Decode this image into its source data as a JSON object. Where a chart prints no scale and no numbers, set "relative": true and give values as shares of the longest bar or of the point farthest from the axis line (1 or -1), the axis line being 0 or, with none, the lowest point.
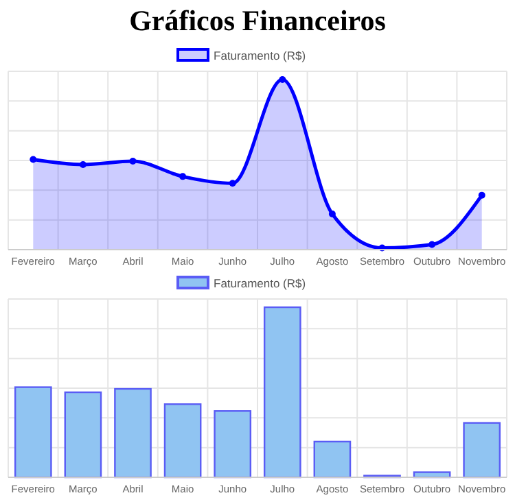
{
  "chart_data": [
    {
      "type": "area",
      "title": "Gráficos Financeiros",
      "categories": [
        "Fevereiro",
        "Março",
        "Abril",
        "Maio",
        "Junho",
        "Julho",
        "Agosto",
        "Setembro",
        "Outubro",
        "Novembro"
      ],
      "relative": true,
      "series": [
        {
          "name": "Faturamento (R$)",
          "color": "#0000ff",
          "values": [
            0.53,
            0.5,
            0.52,
            0.43,
            0.39,
            1,
            0.21,
            0.01,
            0.03,
            0.32
          ]
        }
      ],
      "grid": true,
      "legend": "top",
      "marker": "circle",
      "line_style": "solid"
    },
    {
      "type": "bar",
      "categories": [
        "Fevereiro",
        "Março",
        "Abril",
        "Maio",
        "Junho",
        "Julho",
        "Agosto",
        "Setembro",
        "Outubro",
        "Novembro"
      ],
      "relative": true,
      "series": [
        {
          "name": "Faturamento (R$)",
          "color": "#90c4f2",
          "values": [
            0.53,
            0.5,
            0.52,
            0.43,
            0.39,
            1,
            0.21,
            0.01,
            0.03,
            0.32
          ]
        }
      ],
      "grid": true,
      "legend": "top"
    }
  ]
}
